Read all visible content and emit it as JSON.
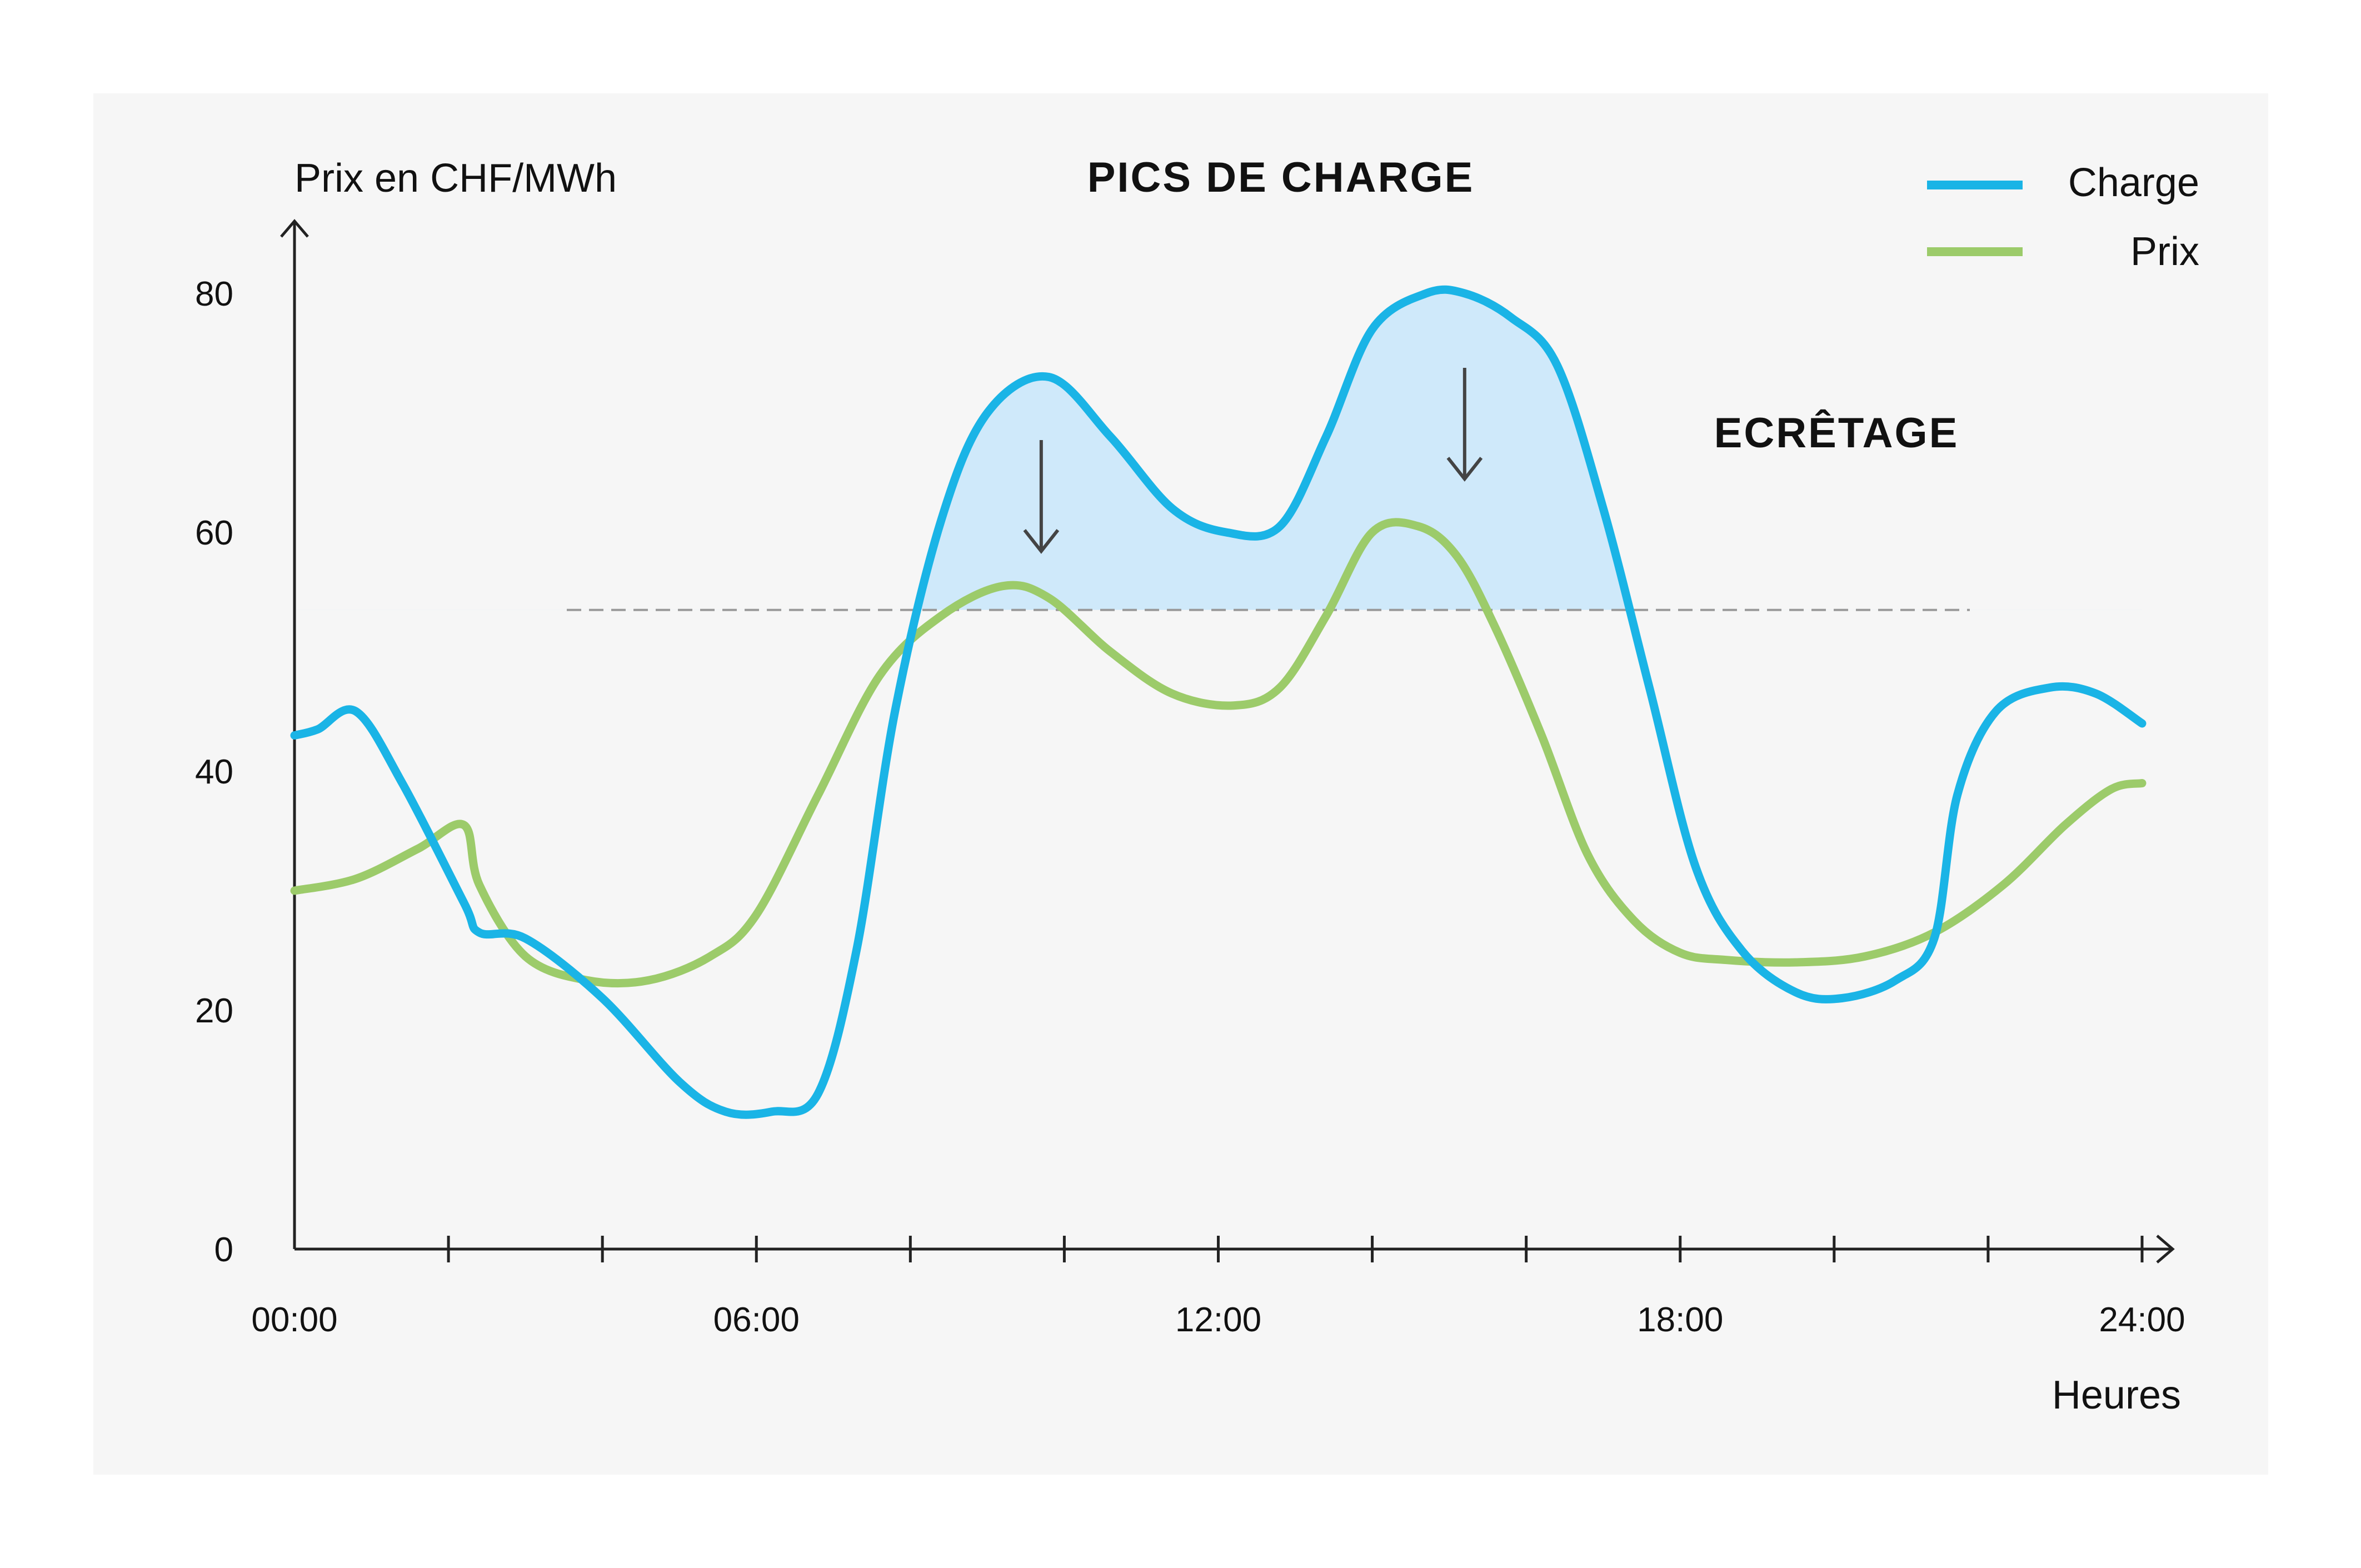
{
  "chart_data": {
    "type": "line",
    "title": "PICS DE CHARGE",
    "xlabel": "Heures",
    "ylabel": "Prix en CHF/MWh",
    "xlim": [
      0,
      24
    ],
    "ylim": [
      0,
      80
    ],
    "x_ticks": [
      {
        "value": 0,
        "label": "00:00"
      },
      {
        "value": 6,
        "label": "06:00"
      },
      {
        "value": 12,
        "label": "12:00"
      },
      {
        "value": 18,
        "label": "18:00"
      },
      {
        "value": 24,
        "label": "24:00"
      }
    ],
    "x_minor_ticks": [
      2,
      4,
      8,
      10,
      14,
      16,
      20,
      22
    ],
    "y_ticks": [
      0,
      20,
      40,
      60,
      80
    ],
    "threshold": 53.5,
    "annotations": {
      "shaving": "ECRÊTAGE",
      "arrows_at": [
        9.7,
        15.2
      ]
    },
    "legend_position": "top-right",
    "colors": {
      "panel": "#f6f6f6",
      "charge": "#1ab4e6",
      "prix": "#9ccb6a",
      "fill": "#cfe9fa",
      "threshold": "#999999"
    },
    "series": [
      {
        "name": "Charge",
        "key": "charge",
        "x": [
          0,
          0.3,
          0.8,
          1.4,
          2.2,
          2.4,
          3.0,
          4.0,
          5.0,
          5.6,
          6.2,
          6.8,
          7.3,
          7.8,
          8.4,
          9.0,
          9.8,
          10.6,
          11.4,
          12.1,
          12.8,
          13.4,
          14.0,
          14.7,
          15.2,
          15.8,
          16.4,
          17.0,
          17.6,
          18.2,
          18.8,
          19.5,
          20.1,
          20.8,
          21.3,
          21.6,
          22.1,
          22.8,
          23.4,
          24.0
        ],
        "y": [
          43,
          43.5,
          45,
          39,
          29,
          26.5,
          26,
          21,
          14,
          11.5,
          11.5,
          13,
          25,
          45,
          61,
          70,
          73,
          68,
          62,
          60,
          60.5,
          68,
          77,
          80,
          80,
          78,
          74,
          62,
          47,
          32,
          25,
          21.5,
          21,
          22.5,
          26,
          38,
          45,
          47,
          46.5,
          44
        ]
      },
      {
        "name": "Prix",
        "key": "prix",
        "x": [
          0,
          0.8,
          1.6,
          2.2,
          2.4,
          3.0,
          3.8,
          4.6,
          5.4,
          6.0,
          6.8,
          7.6,
          8.4,
          9.2,
          9.8,
          10.6,
          11.4,
          12.2,
          12.8,
          13.4,
          14.0,
          14.6,
          15.1,
          15.6,
          16.2,
          16.8,
          17.4,
          18.0,
          18.6,
          19.5,
          20.4,
          21.3,
          22.2,
          23.0,
          23.6,
          24.0
        ],
        "y": [
          30,
          31,
          33.5,
          35.5,
          30.5,
          24.5,
          22.5,
          22.5,
          24.5,
          28,
          38,
          48,
          53,
          55.5,
          54.5,
          50,
          46.5,
          45.5,
          47,
          53,
          60,
          60.5,
          58,
          52,
          43,
          33,
          27.5,
          24.8,
          24.2,
          24,
          24.5,
          26.5,
          30.5,
          35.5,
          38.5,
          39
        ]
      }
    ]
  }
}
